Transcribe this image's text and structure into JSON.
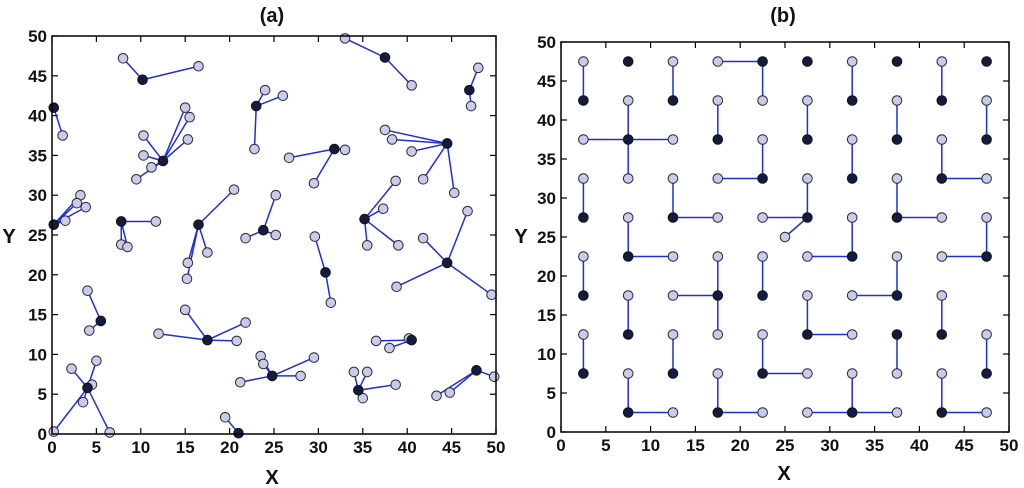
{
  "colors": {
    "member_fill": "#c9cbe9",
    "head_fill": "#141c3c",
    "link": "#1f2fd6"
  },
  "chart_data": [
    {
      "type": "scatter",
      "title": "(a)",
      "xlabel": "X",
      "ylabel": "Y",
      "xlim": [
        0,
        50
      ],
      "ylim": [
        0,
        50
      ],
      "xticks": [
        0,
        5,
        10,
        15,
        20,
        25,
        30,
        35,
        40,
        45,
        50
      ],
      "yticks": [
        0,
        5,
        10,
        15,
        20,
        25,
        30,
        35,
        40,
        45,
        50
      ],
      "clusters": [
        {
          "head": [
            0.2,
            41.0
          ],
          "members": [
            [
              1.2,
              37.5
            ]
          ]
        },
        {
          "head": [
            10.2,
            44.5
          ],
          "members": [
            [
              8.0,
              47.2
            ],
            [
              16.5,
              46.2
            ]
          ]
        },
        {
          "head": [
            12.5,
            34.3
          ],
          "members": [
            [
              10.3,
              37.5
            ],
            [
              10.3,
              35.0
            ],
            [
              9.5,
              32.0
            ],
            [
              11.2,
              33.5
            ],
            [
              15.0,
              41.0
            ],
            [
              15.5,
              39.8
            ],
            [
              15.3,
              37.0
            ]
          ]
        },
        {
          "head": [
            0.2,
            26.3
          ],
          "members": [
            [
              3.2,
              30.0
            ],
            [
              2.8,
              29.0
            ],
            [
              3.8,
              28.5
            ],
            [
              1.5,
              26.8
            ]
          ]
        },
        {
          "head": [
            7.8,
            26.7
          ],
          "members": [
            [
              11.7,
              26.7
            ],
            [
              7.8,
              23.8
            ],
            [
              8.5,
              23.5
            ]
          ]
        },
        {
          "head": [
            16.5,
            26.3
          ],
          "members": [
            [
              20.5,
              30.7
            ],
            [
              17.5,
              22.8
            ],
            [
              15.3,
              21.5
            ],
            [
              15.2,
              19.5
            ]
          ]
        },
        {
          "head": [
            23.0,
            41.2
          ],
          "members": [
            [
              24.0,
              43.2
            ],
            [
              26.0,
              42.5
            ],
            [
              22.8,
              35.8
            ]
          ]
        },
        {
          "head": [
            23.8,
            25.6
          ],
          "members": [
            [
              25.2,
              30.0
            ],
            [
              21.8,
              24.6
            ],
            [
              25.2,
              25.0
            ]
          ]
        },
        {
          "head": [
            31.8,
            35.8
          ],
          "members": [
            [
              26.7,
              34.7
            ],
            [
              33.0,
              35.7
            ],
            [
              29.5,
              31.5
            ]
          ]
        },
        {
          "head": [
            37.5,
            47.3
          ],
          "members": [
            [
              33.0,
              49.7
            ],
            [
              40.5,
              43.8
            ]
          ]
        },
        {
          "head": [
            44.5,
            36.5
          ],
          "members": [
            [
              37.5,
              38.2
            ],
            [
              38.3,
              37.0
            ],
            [
              40.5,
              35.5
            ],
            [
              41.8,
              32.0
            ],
            [
              45.3,
              30.3
            ]
          ]
        },
        {
          "head": [
            35.2,
            27.0
          ],
          "members": [
            [
              38.7,
              31.8
            ],
            [
              37.3,
              28.3
            ],
            [
              35.5,
              23.7
            ],
            [
              39.0,
              23.7
            ]
          ]
        },
        {
          "head": [
            30.8,
            20.3
          ],
          "members": [
            [
              29.6,
              24.8
            ],
            [
              31.4,
              16.5
            ]
          ]
        },
        {
          "head": [
            44.5,
            21.5
          ],
          "members": [
            [
              41.8,
              24.6
            ],
            [
              46.8,
              28.0
            ],
            [
              38.8,
              18.5
            ],
            [
              49.5,
              17.5
            ]
          ]
        },
        {
          "head": [
            47.0,
            43.2
          ],
          "members": [
            [
              48.0,
              46.0
            ],
            [
              47.2,
              41.2
            ]
          ]
        },
        {
          "head": [
            5.5,
            14.2
          ],
          "members": [
            [
              4.0,
              18.0
            ],
            [
              4.2,
              13.0
            ]
          ]
        },
        {
          "head": [
            17.5,
            11.8
          ],
          "members": [
            [
              15.0,
              15.6
            ],
            [
              12.0,
              12.6
            ],
            [
              21.8,
              14.0
            ],
            [
              20.8,
              11.7
            ]
          ]
        },
        {
          "head": [
            24.8,
            7.3
          ],
          "members": [
            [
              23.5,
              9.8
            ],
            [
              23.8,
              8.8
            ],
            [
              28.0,
              7.3
            ],
            [
              29.5,
              9.6
            ],
            [
              21.2,
              6.5
            ]
          ]
        },
        {
          "head": [
            4.0,
            5.8
          ],
          "members": [
            [
              2.2,
              8.2
            ],
            [
              5.0,
              9.2
            ],
            [
              4.5,
              6.2
            ],
            [
              3.5,
              4.0
            ],
            [
              0.2,
              0.3
            ],
            [
              6.5,
              0.2
            ]
          ]
        },
        {
          "head": [
            21.0,
            0.1
          ],
          "members": [
            [
              19.5,
              2.1
            ]
          ]
        },
        {
          "head": [
            40.5,
            11.8
          ],
          "members": [
            [
              36.5,
              11.7
            ],
            [
              40.2,
              12.0
            ],
            [
              38.0,
              10.8
            ]
          ]
        },
        {
          "head": [
            34.5,
            5.5
          ],
          "members": [
            [
              34.0,
              7.8
            ],
            [
              35.5,
              7.8
            ],
            [
              38.7,
              6.2
            ],
            [
              35.0,
              4.5
            ]
          ]
        },
        {
          "head": [
            47.8,
            8.0
          ],
          "members": [
            [
              49.8,
              7.2
            ],
            [
              43.3,
              4.8
            ],
            [
              44.8,
              5.2
            ]
          ]
        }
      ]
    },
    {
      "type": "scatter",
      "title": "(b)",
      "xlabel": "X",
      "ylabel": "Y",
      "xlim": [
        0,
        50
      ],
      "ylim": [
        0,
        50
      ],
      "xticks": [
        0,
        5,
        10,
        15,
        20,
        25,
        30,
        35,
        40,
        45,
        50
      ],
      "yticks": [
        0,
        5,
        10,
        15,
        20,
        25,
        30,
        35,
        40,
        45,
        50
      ],
      "clusters": [
        {
          "head": [
            2.5,
            42.5
          ],
          "members": [
            [
              2.5,
              47.5
            ]
          ]
        },
        {
          "head": [
            7.5,
            47.5
          ],
          "members": []
        },
        {
          "head": [
            12.5,
            42.5
          ],
          "members": [
            [
              12.5,
              47.5
            ]
          ]
        },
        {
          "head": [
            22.5,
            47.5
          ],
          "members": [
            [
              17.5,
              47.5
            ],
            [
              22.5,
              42.5
            ]
          ]
        },
        {
          "head": [
            27.5,
            47.5
          ],
          "members": []
        },
        {
          "head": [
            32.5,
            42.5
          ],
          "members": [
            [
              32.5,
              47.5
            ]
          ]
        },
        {
          "head": [
            37.5,
            47.5
          ],
          "members": []
        },
        {
          "head": [
            42.5,
            42.5
          ],
          "members": [
            [
              42.5,
              47.5
            ]
          ]
        },
        {
          "head": [
            47.5,
            47.5
          ],
          "members": []
        },
        {
          "head": [
            7.5,
            37.5
          ],
          "members": [
            [
              2.5,
              37.5
            ],
            [
              12.5,
              37.5
            ],
            [
              7.5,
              42.5
            ],
            [
              7.5,
              32.5
            ]
          ]
        },
        {
          "head": [
            17.5,
            37.5
          ],
          "members": [
            [
              17.5,
              42.5
            ]
          ]
        },
        {
          "head": [
            27.5,
            37.5
          ],
          "members": [
            [
              27.5,
              42.5
            ]
          ]
        },
        {
          "head": [
            37.5,
            37.5
          ],
          "members": [
            [
              37.5,
              42.5
            ]
          ]
        },
        {
          "head": [
            47.5,
            37.5
          ],
          "members": [
            [
              47.5,
              42.5
            ]
          ]
        },
        {
          "head": [
            22.5,
            32.5
          ],
          "members": [
            [
              22.5,
              37.5
            ],
            [
              17.5,
              32.5
            ]
          ]
        },
        {
          "head": [
            32.5,
            32.5
          ],
          "members": [
            [
              32.5,
              37.5
            ]
          ]
        },
        {
          "head": [
            42.5,
            32.5
          ],
          "members": [
            [
              42.5,
              37.5
            ],
            [
              47.5,
              32.5
            ]
          ]
        },
        {
          "head": [
            2.5,
            27.5
          ],
          "members": [
            [
              2.5,
              32.5
            ]
          ]
        },
        {
          "head": [
            12.5,
            27.5
          ],
          "members": [
            [
              12.5,
              32.5
            ],
            [
              17.5,
              27.5
            ]
          ]
        },
        {
          "head": [
            27.5,
            27.5
          ],
          "members": [
            [
              27.5,
              32.5
            ],
            [
              22.5,
              27.5
            ],
            [
              25.0,
              25.0
            ]
          ]
        },
        {
          "head": [
            37.5,
            27.5
          ],
          "members": [
            [
              37.5,
              32.5
            ],
            [
              42.5,
              27.5
            ]
          ]
        },
        {
          "head": [
            7.5,
            22.5
          ],
          "members": [
            [
              7.5,
              27.5
            ],
            [
              12.5,
              22.5
            ]
          ]
        },
        {
          "head": [
            32.5,
            22.5
          ],
          "members": [
            [
              32.5,
              27.5
            ],
            [
              27.5,
              22.5
            ]
          ]
        },
        {
          "head": [
            47.5,
            22.5
          ],
          "members": [
            [
              47.5,
              27.5
            ],
            [
              42.5,
              22.5
            ]
          ]
        },
        {
          "head": [
            2.5,
            17.5
          ],
          "members": [
            [
              2.5,
              22.5
            ]
          ]
        },
        {
          "head": [
            17.5,
            17.5
          ],
          "members": [
            [
              17.5,
              22.5
            ],
            [
              12.5,
              17.5
            ],
            [
              17.5,
              12.5
            ]
          ]
        },
        {
          "head": [
            22.5,
            17.5
          ],
          "members": [
            [
              22.5,
              22.5
            ]
          ]
        },
        {
          "head": [
            37.5,
            17.5
          ],
          "members": [
            [
              37.5,
              22.5
            ],
            [
              32.5,
              17.5
            ]
          ]
        },
        {
          "head": [
            7.5,
            12.5
          ],
          "members": [
            [
              7.5,
              17.5
            ]
          ]
        },
        {
          "head": [
            27.5,
            12.5
          ],
          "members": [
            [
              27.5,
              17.5
            ],
            [
              32.5,
              12.5
            ]
          ]
        },
        {
          "head": [
            42.5,
            12.5
          ],
          "members": [
            [
              42.5,
              17.5
            ]
          ]
        },
        {
          "head": [
            2.5,
            7.5
          ],
          "members": [
            [
              2.5,
              12.5
            ]
          ]
        },
        {
          "head": [
            12.5,
            7.5
          ],
          "members": [
            [
              12.5,
              12.5
            ]
          ]
        },
        {
          "head": [
            22.5,
            7.5
          ],
          "members": [
            [
              22.5,
              12.5
            ],
            [
              27.5,
              7.5
            ]
          ]
        },
        {
          "head": [
            37.5,
            12.5
          ],
          "members": [
            [
              37.5,
              7.5
            ]
          ]
        },
        {
          "head": [
            47.5,
            7.5
          ],
          "members": [
            [
              47.5,
              12.5
            ]
          ]
        },
        {
          "head": [
            7.5,
            2.5
          ],
          "members": [
            [
              7.5,
              7.5
            ],
            [
              12.5,
              2.5
            ]
          ]
        },
        {
          "head": [
            17.5,
            2.5
          ],
          "members": [
            [
              17.5,
              7.5
            ],
            [
              22.5,
              2.5
            ]
          ]
        },
        {
          "head": [
            32.5,
            2.5
          ],
          "members": [
            [
              32.5,
              7.5
            ],
            [
              27.5,
              2.5
            ],
            [
              37.5,
              2.5
            ]
          ]
        },
        {
          "head": [
            42.5,
            2.5
          ],
          "members": [
            [
              42.5,
              7.5
            ],
            [
              47.5,
              2.5
            ]
          ]
        }
      ]
    }
  ]
}
